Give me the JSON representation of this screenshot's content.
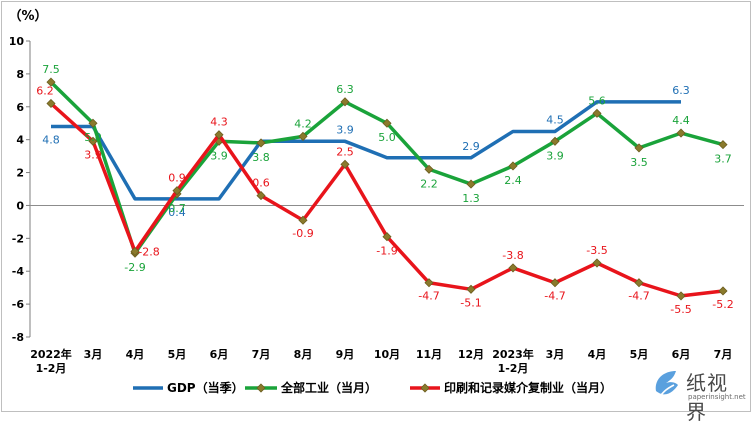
{
  "chart_data": {
    "type": "line",
    "title": "",
    "ylabel": "（%）",
    "xlabel": "",
    "ylim": [
      -8,
      10
    ],
    "yticks": [
      "10",
      "8",
      "6",
      "4",
      "2",
      "0",
      "-2",
      "-4",
      "-6",
      "-8"
    ],
    "categories": [
      "2022年\n1-2月",
      "3月",
      "4月",
      "5月",
      "6月",
      "7月",
      "8月",
      "9月",
      "10月",
      "11月",
      "12月",
      "2023年\n1-2月",
      "3月",
      "4月",
      "5月",
      "6月",
      "7月"
    ],
    "grid": false,
    "legend": "bottom",
    "series": [
      {
        "name": "GDP（当季）",
        "color": "#1f6fb4",
        "marker": "none",
        "values": [
          4.8,
          4.8,
          0.4,
          0.4,
          0.4,
          3.9,
          3.9,
          3.9,
          2.9,
          2.9,
          2.9,
          4.5,
          4.5,
          6.3,
          6.3,
          6.3,
          null
        ],
        "labels": [
          {
            "i": 0,
            "text": "4.8"
          },
          {
            "i": 3,
            "text": "0.4"
          },
          {
            "i": 7,
            "text": "3.9"
          },
          {
            "i": 10,
            "text": "2.9"
          },
          {
            "i": 12,
            "text": "4.5"
          },
          {
            "i": 15,
            "text": "6.3"
          }
        ]
      },
      {
        "name": "全部工业（当月）",
        "color": "#1aa33a",
        "marker": "diamond",
        "values": [
          7.5,
          5.0,
          -2.9,
          0.7,
          3.9,
          3.8,
          4.2,
          6.3,
          5.0,
          2.2,
          1.3,
          2.4,
          3.9,
          5.6,
          3.5,
          4.4,
          3.7
        ],
        "labels": [
          {
            "i": 0,
            "text": "7.5"
          },
          {
            "i": 1,
            "text": "5.0"
          },
          {
            "i": 2,
            "text": "-2.9"
          },
          {
            "i": 3,
            "text": "0.7"
          },
          {
            "i": 4,
            "text": "3.9"
          },
          {
            "i": 5,
            "text": "3.8"
          },
          {
            "i": 6,
            "text": "4.2"
          },
          {
            "i": 7,
            "text": "6.3"
          },
          {
            "i": 8,
            "text": "5.0"
          },
          {
            "i": 9,
            "text": "2.2"
          },
          {
            "i": 10,
            "text": "1.3"
          },
          {
            "i": 11,
            "text": "2.4"
          },
          {
            "i": 12,
            "text": "3.9"
          },
          {
            "i": 13,
            "text": "5.6"
          },
          {
            "i": 14,
            "text": "3.5"
          },
          {
            "i": 15,
            "text": "4.4"
          },
          {
            "i": 16,
            "text": "3.7"
          }
        ]
      },
      {
        "name": "印刷和记录媒介复制业（当月）",
        "color": "#e8141b",
        "marker": "diamond",
        "values": [
          6.2,
          3.9,
          -2.8,
          0.9,
          4.3,
          0.6,
          -0.9,
          2.5,
          -1.9,
          -4.7,
          -5.1,
          -3.8,
          -4.7,
          -3.5,
          -4.7,
          -5.5,
          -5.2
        ],
        "labels": [
          {
            "i": 0,
            "text": "6.2"
          },
          {
            "i": 1,
            "text": "3.9"
          },
          {
            "i": 2,
            "text": "-2.8"
          },
          {
            "i": 3,
            "text": "0.9"
          },
          {
            "i": 4,
            "text": "4.3"
          },
          {
            "i": 5,
            "text": "0.6"
          },
          {
            "i": 6,
            "text": "-0.9"
          },
          {
            "i": 7,
            "text": "2.5"
          },
          {
            "i": 8,
            "text": "-1.9"
          },
          {
            "i": 9,
            "text": "-4.7"
          },
          {
            "i": 10,
            "text": "-5.1"
          },
          {
            "i": 11,
            "text": "-3.8"
          },
          {
            "i": 12,
            "text": "-4.7"
          },
          {
            "i": 13,
            "text": "-3.5"
          },
          {
            "i": 14,
            "text": "-4.7"
          },
          {
            "i": 15,
            "text": "-5.5"
          },
          {
            "i": 16,
            "text": "-5.2"
          }
        ]
      }
    ]
  },
  "watermark": {
    "brand_cn": "纸视界",
    "brand_en": "paperinsight.net",
    "icon": "paper-plane-logo-icon",
    "color": "#3d8fd8"
  }
}
